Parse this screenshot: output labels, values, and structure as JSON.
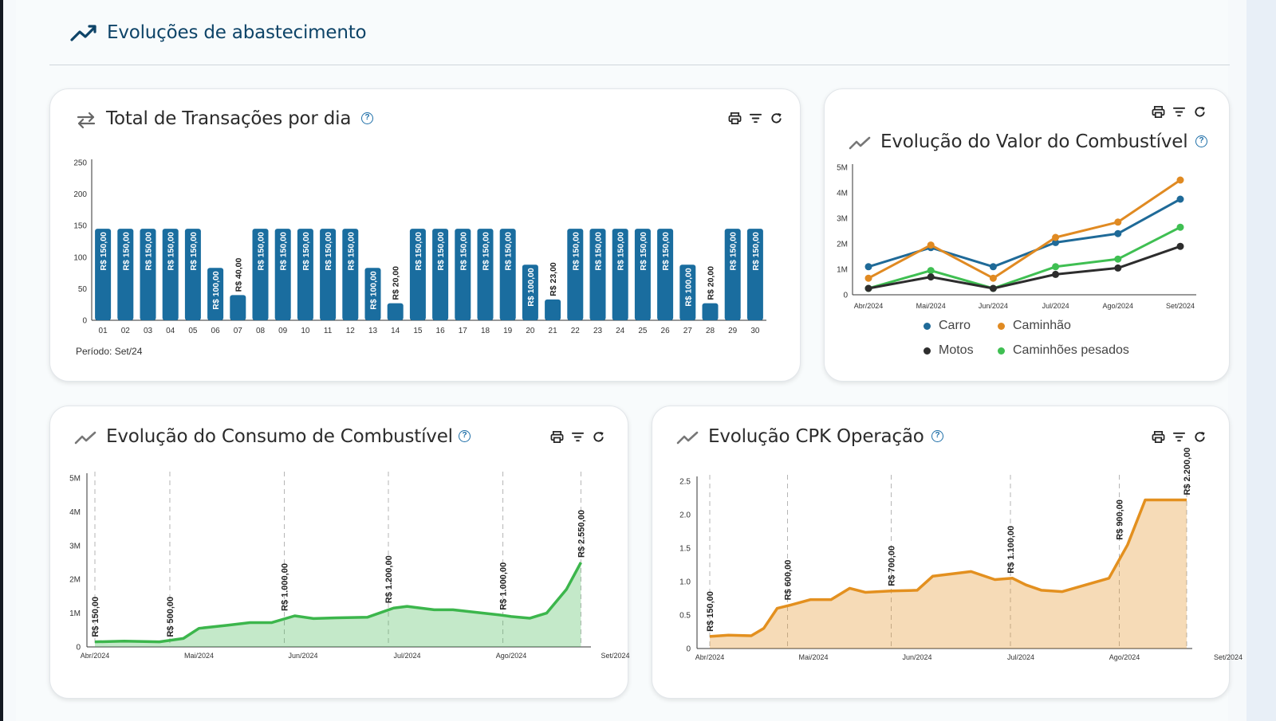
{
  "section": {
    "title": "Evoluções de abastecimento"
  },
  "card1": {
    "title": "Total de Transações por dia",
    "help": "?",
    "period": "Período: Set/24"
  },
  "card2": {
    "title": "Evolução do Valor do Combustível",
    "help": "?",
    "legend": [
      "Carro",
      "Caminhão",
      "Motos",
      "Caminhões pesados"
    ]
  },
  "card3": {
    "title": "Evolução do Consumo de Combustível",
    "help": "?"
  },
  "card4": {
    "title": "Evolução CPK Operação",
    "help": "?"
  },
  "icons": {
    "section": "trending-up-icon",
    "card1": "swap-arrows-icon",
    "charts": "trending-line-icon",
    "toolbar": [
      "print-icon",
      "filter-icon",
      "refresh-icon"
    ]
  },
  "colors": {
    "heading": "#0e4468",
    "bar": "#1a6d9f",
    "carro": "#1f6a98",
    "caminhao": "#e08a22",
    "motos": "#2d2d2d",
    "pesados": "#3fbf52",
    "consumo": "#3cb64c",
    "cpk": "#e3901f"
  },
  "chart_data": [
    {
      "id": "transacoes",
      "type": "bar",
      "categories": [
        "01",
        "02",
        "03",
        "04",
        "05",
        "06",
        "07",
        "08",
        "09",
        "10",
        "11",
        "12",
        "13",
        "14",
        "15",
        "16",
        "17",
        "18",
        "19",
        "20",
        "21",
        "22",
        "23",
        "24",
        "25",
        "26",
        "27",
        "28",
        "29",
        "30"
      ],
      "values": [
        145,
        145,
        145,
        145,
        145,
        83,
        40,
        145,
        145,
        145,
        145,
        145,
        83,
        27,
        145,
        145,
        145,
        145,
        145,
        88,
        33,
        145,
        145,
        145,
        145,
        145,
        88,
        27,
        145,
        145
      ],
      "data_labels": [
        "R$ 150,00",
        "R$ 150,00",
        "R$ 150,00",
        "R$ 150,00",
        "R$ 150,00",
        "R$ 100,00",
        "R$ 40,00",
        "R$ 150,00",
        "R$ 150,00",
        "R$ 150,00",
        "R$ 150,00",
        "R$ 150,00",
        "R$ 100,00",
        "R$ 20,00",
        "R$ 150,00",
        "R$ 150,00",
        "R$ 150,00",
        "R$ 150,00",
        "R$ 150,00",
        "R$ 100,00",
        "R$ 23,00",
        "R$ 150,00",
        "R$ 150,00",
        "R$ 150,00",
        "R$ 150,00",
        "R$ 150,00",
        "R$ 100,00",
        "R$ 20,00",
        "R$ 150,00",
        "R$ 150,00"
      ],
      "yticks": [
        "0",
        "50",
        "100",
        "150",
        "200",
        "250"
      ],
      "ylim": [
        0,
        250
      ],
      "grid": false
    },
    {
      "id": "valor",
      "type": "line",
      "categories": [
        "Abr/2024",
        "Mai/2024",
        "Jun/2024",
        "Jul/2024",
        "Ago/2024",
        "Set/2024"
      ],
      "yticks": [
        "0",
        "1M",
        "2M",
        "3M",
        "4M",
        "5M"
      ],
      "ylim": [
        0,
        5000000
      ],
      "series": [
        {
          "name": "Carro",
          "values": [
            1100000,
            1850000,
            1100000,
            2050000,
            2400000,
            3750000
          ]
        },
        {
          "name": "Caminhão",
          "values": [
            650000,
            1950000,
            650000,
            2250000,
            2850000,
            4500000
          ]
        },
        {
          "name": "Motos",
          "values": [
            250000,
            700000,
            250000,
            800000,
            1050000,
            1900000
          ]
        },
        {
          "name": "Caminhões pesados",
          "values": [
            250000,
            950000,
            250000,
            1100000,
            1400000,
            2650000
          ]
        }
      ],
      "legend_position": "bottom"
    },
    {
      "id": "consumo",
      "type": "area",
      "x_labels": [
        "Abr/2024",
        "Mai/2024",
        "Jun/2024",
        "Jul/2024",
        "Ago/2024",
        "Set/2024"
      ],
      "yticks": [
        "0",
        "1M",
        "2M",
        "3M",
        "4M",
        "5M"
      ],
      "ylim": [
        0,
        5000000
      ],
      "x": [
        0,
        0.28,
        0.62,
        0.85,
        1,
        1.27,
        1.49,
        1.7,
        1.92,
        2.1,
        2.32,
        2.62,
        2.87,
        3,
        3.26,
        3.44,
        3.88,
        4,
        4.18,
        4.34,
        4.53,
        4.67
      ],
      "values": [
        150000,
        170000,
        150000,
        250000,
        550000,
        640000,
        720000,
        720000,
        920000,
        840000,
        860000,
        880000,
        1150000,
        1200000,
        1100000,
        1100000,
        950000,
        900000,
        850000,
        1000000,
        1700000,
        2500000
      ],
      "annotations": [
        {
          "x": 0,
          "label": "R$ 150,00"
        },
        {
          "x": 0.72,
          "label": "R$ 500,00"
        },
        {
          "x": 1.82,
          "label": "R$ 1.000,00"
        },
        {
          "x": 2.82,
          "label": "R$ 1.200,00"
        },
        {
          "x": 3.92,
          "label": "R$ 1.000,00"
        },
        {
          "x": 4.67,
          "label": "R$ 2.550,00"
        }
      ],
      "grid": "vertical-dashed"
    },
    {
      "id": "cpk",
      "type": "area",
      "x_labels": [
        "Abr/2024",
        "Mai/2024",
        "Jun/2024",
        "Jul/2024",
        "Ago/2024",
        "Set/2024"
      ],
      "yticks": [
        "0",
        "0.5",
        "1.0",
        "1.5",
        "2.0",
        "2.5"
      ],
      "ylim": [
        0,
        2.5
      ],
      "x": [
        0,
        0.18,
        0.4,
        0.52,
        0.65,
        0.78,
        0.97,
        1.17,
        1.35,
        1.5,
        1.75,
        2,
        2.15,
        2.52,
        2.75,
        2.92,
        3.05,
        3.2,
        3.4,
        3.85,
        4.03,
        4.2,
        4.45,
        4.6
      ],
      "values": [
        0.18,
        0.2,
        0.19,
        0.3,
        0.6,
        0.65,
        0.73,
        0.73,
        0.9,
        0.84,
        0.86,
        0.87,
        1.08,
        1.15,
        1.03,
        1.05,
        0.95,
        0.87,
        0.85,
        1.05,
        1.55,
        2.22,
        2.22,
        2.22
      ],
      "annotations": [
        {
          "x": 0,
          "label": "R$ 150,00"
        },
        {
          "x": 0.75,
          "label": "R$ 600,00"
        },
        {
          "x": 1.75,
          "label": "R$ 700,00"
        },
        {
          "x": 2.9,
          "label": "R$ 1.100,00"
        },
        {
          "x": 3.95,
          "label": "R$ 900,00"
        },
        {
          "x": 4.6,
          "label": "R$ 2.200,00"
        }
      ],
      "grid": "vertical-dashed"
    }
  ]
}
